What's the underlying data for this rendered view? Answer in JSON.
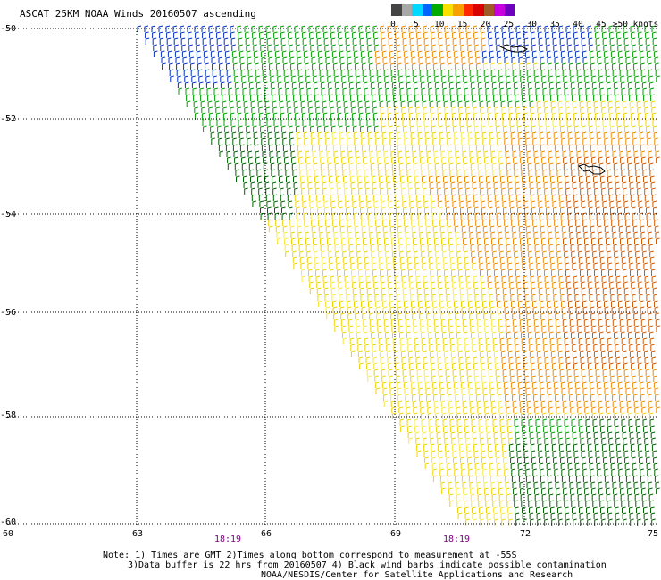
{
  "title": "ASCAT 25KM NOAA Winds 20160507 ascending",
  "scale": {
    "bins": [
      {
        "label": "0",
        "color": "#444444"
      },
      {
        "label": "5",
        "color": "#a8a8a8"
      },
      {
        "label": "10",
        "color": "#00d8ff"
      },
      {
        "label": "15",
        "color": "#0064ff"
      },
      {
        "label": "20",
        "color": "#00aa00"
      },
      {
        "label": "25",
        "color": "#f8e000"
      },
      {
        "label": "30",
        "color": "#f8a000"
      },
      {
        "label": "35",
        "color": "#ff2800"
      },
      {
        "label": "40",
        "color": "#d80000"
      },
      {
        "label": "45",
        "color": "#a05a28"
      },
      {
        "label": "≥50 knots",
        "color": "#c800e0"
      }
    ],
    "extra_color": "#7000c0"
  },
  "map": {
    "lat_labels": [
      "-50",
      "-52",
      "-54",
      "-56",
      "-58",
      "-60"
    ],
    "lon_labels": [
      "60",
      "63",
      "66",
      "69",
      "72",
      "75"
    ],
    "time_labels": [
      "18:19",
      "18:19"
    ]
  },
  "notes": {
    "line1": "Note: 1) Times are GMT 2)Times along bottom correspond to measurement at -55S",
    "line2": "3)Data buffer is 22 hrs from 20160507 4) Black wind barbs indicate possible contamination",
    "line3": "NOAA/NESDIS/Center for Satellite Applications and Research"
  }
}
